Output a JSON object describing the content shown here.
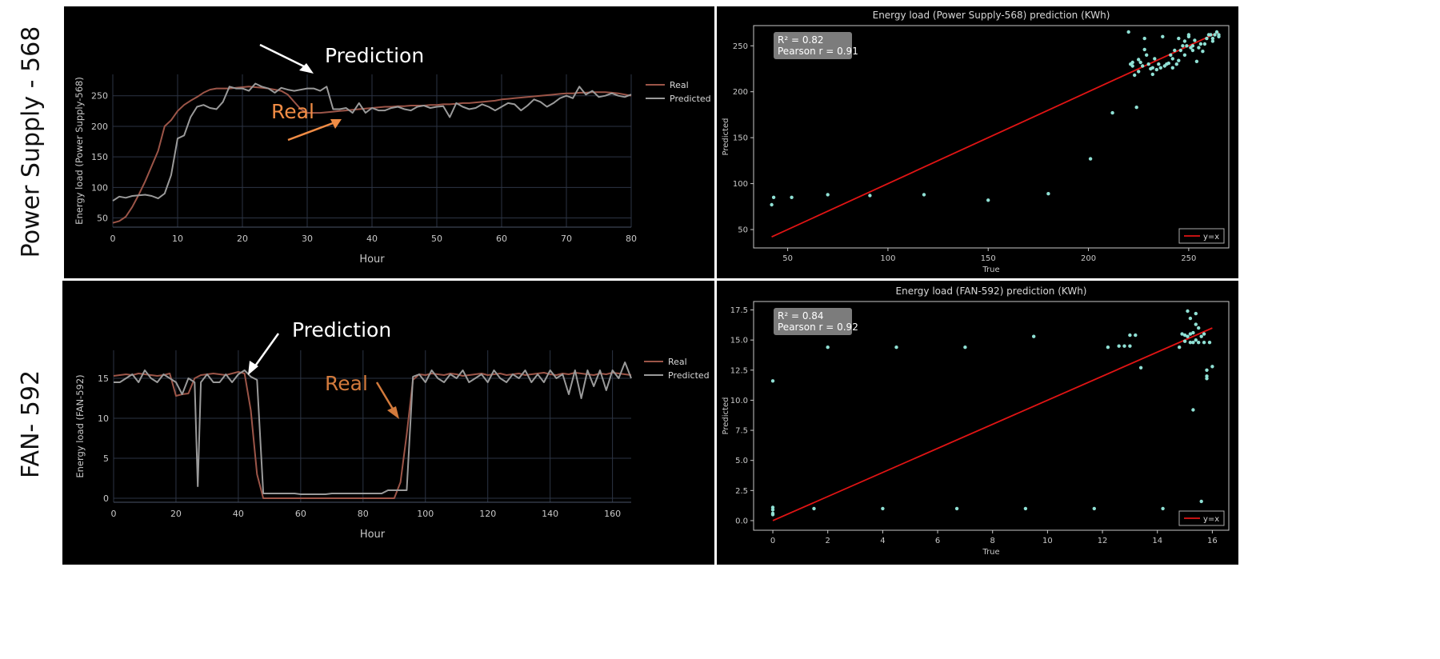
{
  "row_labels": [
    "Power Supply - 568",
    "FAN- 592"
  ],
  "colors": {
    "real": "#9c5548",
    "predicted": "#9a9a9a",
    "scatter": "#8fe0d4",
    "fit": "#e01414",
    "annot_white": "#ffffff",
    "annot_orange_top": "#f08c45",
    "annot_orange_bottom": "#d27a3c"
  },
  "chart_data": [
    {
      "type": "line",
      "annotations": {
        "prediction": "Prediction",
        "real": "Real"
      },
      "xlabel": "Hour",
      "ylabel": "Energy load (Power Supply-568)",
      "xlim": [
        0,
        80
      ],
      "ylim": [
        35,
        285
      ],
      "xticks": [
        0,
        10,
        20,
        30,
        40,
        50,
        60,
        70,
        80
      ],
      "yticks": [
        50,
        100,
        150,
        200,
        250
      ],
      "grid": true,
      "legend": "top-right",
      "x": [
        0,
        1,
        2,
        3,
        4,
        5,
        6,
        7,
        8,
        9,
        10,
        11,
        12,
        13,
        14,
        15,
        16,
        17,
        18,
        19,
        20,
        21,
        22,
        23,
        24,
        25,
        26,
        27,
        28,
        29,
        30,
        31,
        32,
        33,
        34,
        35,
        36,
        37,
        38,
        39,
        40,
        41,
        42,
        43,
        44,
        45,
        46,
        47,
        48,
        49,
        50,
        51,
        52,
        53,
        54,
        55,
        56,
        57,
        58,
        59,
        60,
        61,
        62,
        63,
        64,
        65,
        66,
        67,
        68,
        69,
        70,
        71,
        72,
        73,
        74,
        75,
        76,
        77,
        78,
        79,
        80
      ],
      "series": [
        {
          "name": "Real",
          "values": [
            42,
            45,
            52,
            68,
            88,
            110,
            135,
            160,
            200,
            210,
            225,
            235,
            242,
            248,
            255,
            260,
            262,
            262,
            262,
            263,
            264,
            265,
            264,
            263,
            262,
            260,
            258,
            252,
            240,
            228,
            222,
            222,
            222,
            223,
            224,
            225,
            226,
            227,
            228,
            229,
            230,
            231,
            232,
            232,
            233,
            233,
            234,
            234,
            234,
            235,
            235,
            236,
            236,
            237,
            238,
            238,
            239,
            240,
            241,
            242,
            244,
            245,
            246,
            247,
            248,
            249,
            250,
            251,
            252,
            253,
            254,
            254,
            255,
            255,
            256,
            256,
            256,
            255,
            254,
            252,
            250
          ]
        },
        {
          "name": "Predicted",
          "values": [
            78,
            85,
            83,
            86,
            87,
            88,
            86,
            82,
            90,
            120,
            180,
            185,
            215,
            232,
            235,
            230,
            228,
            240,
            265,
            262,
            262,
            258,
            270,
            265,
            262,
            255,
            263,
            260,
            258,
            260,
            262,
            262,
            258,
            265,
            228,
            228,
            230,
            222,
            238,
            222,
            230,
            226,
            226,
            230,
            232,
            228,
            226,
            232,
            234,
            230,
            232,
            233,
            215,
            238,
            232,
            228,
            230,
            236,
            232,
            226,
            232,
            238,
            236,
            226,
            234,
            244,
            240,
            232,
            238,
            246,
            250,
            246,
            265,
            252,
            258,
            248,
            250,
            254,
            250,
            248,
            252
          ]
        }
      ]
    },
    {
      "type": "scatter",
      "title": "Energy load (Power Supply-568) prediction (KWh)",
      "xlabel": "True",
      "ylabel": "Predicted",
      "xlim": [
        33,
        270
      ],
      "ylim": [
        30,
        272
      ],
      "xticks": [
        50,
        100,
        150,
        200,
        250
      ],
      "yticks": [
        50,
        100,
        150,
        200,
        250
      ],
      "stats": [
        "R² = 0.82",
        "Pearson r = 0.91"
      ],
      "legend": {
        "label": "y=x",
        "placement": "bottom-right"
      },
      "fit_line": [
        [
          42,
          42
        ],
        [
          265,
          265
        ]
      ],
      "x": [
        42,
        43,
        52,
        70,
        91,
        118,
        150,
        180,
        201,
        212,
        220,
        221,
        222,
        222,
        223,
        224,
        225,
        225,
        226,
        227,
        228,
        228,
        229,
        230,
        231,
        232,
        232,
        233,
        234,
        235,
        236,
        237,
        238,
        239,
        240,
        241,
        242,
        242,
        243,
        244,
        245,
        245,
        246,
        247,
        248,
        248,
        249,
        250,
        250,
        251,
        252,
        252,
        253,
        254,
        255,
        256,
        257,
        258,
        259,
        260,
        261,
        262,
        262,
        263,
        264,
        265,
        265
      ],
      "y": [
        77,
        85,
        85,
        88,
        87,
        88,
        82,
        89,
        127,
        177,
        265,
        230,
        228,
        232,
        218,
        183,
        235,
        222,
        232,
        228,
        258,
        246,
        240,
        230,
        225,
        226,
        219,
        236,
        224,
        230,
        226,
        260,
        228,
        230,
        231,
        240,
        236,
        226,
        245,
        230,
        234,
        258,
        245,
        250,
        255,
        240,
        250,
        260,
        262,
        248,
        250,
        245,
        256,
        233,
        248,
        252,
        244,
        252,
        258,
        262,
        262,
        258,
        255,
        262,
        265,
        260,
        262
      ],
      "marker_color": "#8fe0d4"
    },
    {
      "type": "line",
      "annotations": {
        "prediction": "Prediction",
        "real": "Real"
      },
      "xlabel": "Hour",
      "ylabel": "Energy load (FAN-592)",
      "xlim": [
        0,
        166
      ],
      "ylim": [
        -0.5,
        18.5
      ],
      "xticks": [
        0,
        20,
        40,
        60,
        80,
        100,
        120,
        140,
        160
      ],
      "yticks": [
        0,
        5,
        10,
        15
      ],
      "grid": true,
      "legend": "top-right",
      "x": [
        0,
        2,
        4,
        6,
        8,
        10,
        12,
        14,
        16,
        18,
        20,
        22,
        24,
        26,
        27,
        28,
        30,
        32,
        34,
        36,
        38,
        40,
        42,
        44,
        46,
        48,
        50,
        52,
        54,
        56,
        58,
        60,
        62,
        64,
        66,
        68,
        70,
        72,
        74,
        76,
        78,
        80,
        82,
        84,
        86,
        88,
        90,
        92,
        94,
        96,
        98,
        100,
        102,
        104,
        106,
        108,
        110,
        112,
        114,
        116,
        118,
        120,
        122,
        124,
        126,
        128,
        130,
        132,
        134,
        136,
        138,
        140,
        142,
        144,
        146,
        148,
        150,
        152,
        154,
        156,
        158,
        160,
        162,
        164,
        166
      ],
      "series": [
        {
          "name": "Real",
          "values": [
            15.3,
            15.4,
            15.5,
            15.4,
            15.6,
            15.5,
            15.4,
            15.3,
            15.4,
            15.6,
            12.8,
            13,
            13.1,
            15,
            15.2,
            15.4,
            15.5,
            15.6,
            15.5,
            15.4,
            15.6,
            15.8,
            15.6,
            11,
            3,
            0,
            0,
            0,
            0,
            0,
            0,
            0,
            0,
            0,
            0,
            0,
            0,
            0,
            0,
            0,
            0,
            0,
            0,
            0,
            0,
            0,
            0,
            2,
            8,
            14.8,
            15.5,
            15.4,
            15.6,
            15.5,
            15.4,
            15.6,
            15.5,
            15.3,
            15.4,
            15.5,
            15.6,
            15.4,
            15.5,
            15.6,
            15.4,
            15.5,
            15.6,
            15.4,
            15.5,
            15.6,
            15.7,
            15.5,
            15.4,
            15.6,
            15.5,
            15.7,
            15.6,
            15.5,
            15.4,
            15.6,
            15.5,
            15.7,
            15.6,
            15.5,
            15.4
          ]
        },
        {
          "name": "Predicted",
          "values": [
            14.5,
            14.5,
            15,
            15.5,
            14.5,
            16,
            15,
            14.5,
            15.5,
            15,
            14.5,
            13,
            15,
            14.5,
            1.5,
            14.5,
            15.5,
            14.5,
            14.5,
            15.5,
            14.5,
            15.5,
            16,
            15.2,
            14.8,
            0.6,
            0.6,
            0.6,
            0.6,
            0.6,
            0.6,
            0.5,
            0.5,
            0.5,
            0.5,
            0.5,
            0.6,
            0.6,
            0.6,
            0.6,
            0.6,
            0.6,
            0.6,
            0.6,
            0.6,
            1,
            1,
            1,
            1,
            15.2,
            15.5,
            14.5,
            16,
            15,
            14.5,
            15.5,
            15,
            16,
            14.5,
            15,
            15.5,
            14.5,
            16,
            15,
            14.5,
            15.5,
            15,
            16,
            14.5,
            15.5,
            14.5,
            16,
            15,
            15.5,
            13,
            16,
            12.5,
            16,
            14,
            16,
            13.5,
            16,
            15,
            17,
            15
          ]
        }
      ]
    },
    {
      "type": "scatter",
      "title": "Energy load (FAN-592) prediction (KWh)",
      "xlabel": "True",
      "ylabel": "Predicted",
      "xlim": [
        -0.7,
        16.6
      ],
      "ylim": [
        -0.8,
        18.2
      ],
      "xticks": [
        0,
        2,
        4,
        6,
        8,
        10,
        12,
        14,
        16
      ],
      "yticks": [
        0.0,
        2.5,
        5.0,
        7.5,
        10.0,
        12.5,
        15.0,
        17.5
      ],
      "stats": [
        "R² = 0.84",
        "Pearson r = 0.92"
      ],
      "legend": {
        "label": "y=x",
        "placement": "bottom-right"
      },
      "fit_line": [
        [
          0,
          0
        ],
        [
          16,
          16
        ]
      ],
      "x": [
        0,
        0,
        0,
        0,
        0,
        1.5,
        2,
        4,
        4.5,
        6.7,
        7,
        9.2,
        9.5,
        11.7,
        12.2,
        12.6,
        12.8,
        13,
        13,
        13.2,
        13.4,
        14.2,
        14.8,
        14.9,
        15,
        15,
        15.1,
        15.1,
        15.2,
        15.2,
        15.2,
        15.3,
        15.3,
        15.3,
        15.4,
        15.4,
        15.4,
        15.5,
        15.5,
        15.6,
        15.6,
        15.7,
        15.7,
        15.8,
        15.8,
        15.8,
        15.9,
        16
      ],
      "y": [
        0.5,
        0.6,
        0.9,
        1.1,
        11.6,
        1,
        14.4,
        1,
        14.4,
        1,
        14.4,
        1,
        15.3,
        1,
        14.4,
        14.5,
        14.5,
        14.5,
        15.4,
        15.4,
        12.7,
        1,
        14.4,
        15.5,
        14.9,
        15.4,
        15.3,
        17.4,
        14.8,
        15.5,
        16.8,
        14.8,
        15.6,
        9.2,
        15,
        16.3,
        17.2,
        14.8,
        16,
        15.3,
        1.6,
        14.8,
        15.5,
        12,
        12.5,
        11.8,
        14.8,
        12.8
      ],
      "marker_color": "#8fe0d4"
    }
  ]
}
